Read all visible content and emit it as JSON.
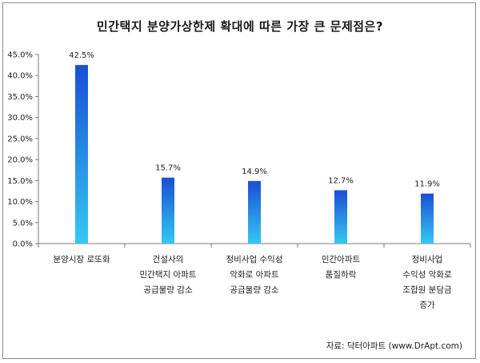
{
  "chart_data": {
    "type": "bar",
    "title": "민간택지 분양가상한제 확대에 따른 가장 큰 문제점은?",
    "categories": [
      [
        "분양시장 로또화"
      ],
      [
        "건설사의",
        "민간택지 아파트",
        "공급물량 감소"
      ],
      [
        "정비사업 수익성",
        "악화로 아파트",
        "공급물량 감소"
      ],
      [
        "민간아파트",
        "품질하락"
      ],
      [
        "정비사업",
        "수익성 악화로",
        "조합원 분담금",
        "증가"
      ]
    ],
    "values": [
      42.5,
      15.7,
      14.9,
      12.7,
      11.9
    ],
    "data_labels": [
      "42.5%",
      "15.7%",
      "14.9%",
      "12.7%",
      "11.9%"
    ],
    "y_ticks": [
      "0.0%",
      "5.0%",
      "10.0%",
      "15.0%",
      "20.0%",
      "25.0%",
      "30.0%",
      "35.0%",
      "40.0%",
      "45.0%"
    ],
    "ylim": [
      0,
      45
    ],
    "grid": false,
    "bar_color_top": "#1a4fd6",
    "bar_color_bottom": "#35c8f2",
    "source": "자료: 닥터아파트 (www.DrApt.com)"
  }
}
